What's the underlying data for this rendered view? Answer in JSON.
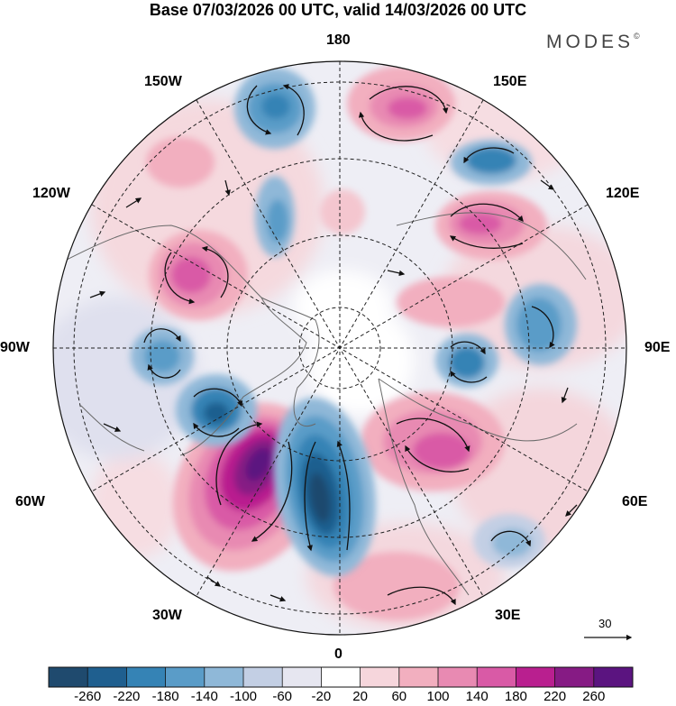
{
  "title": "Base 07/03/2026 00 UTC, valid 14/03/2026 00 UTC",
  "brand": "MODES",
  "brand_mark": "©",
  "longitude_labels": {
    "n180": "180",
    "w150": "150W",
    "e150": "150E",
    "w120": "120W",
    "e120": "120E",
    "w90": "90W",
    "e90": "90E",
    "w60": "60W",
    "e60": "60E",
    "w30": "30W",
    "e30": "30E",
    "s0": "0"
  },
  "vector_reference": "30",
  "colorbar": {
    "ticks": [
      "-260",
      "-220",
      "-180",
      "-140",
      "-100",
      "-60",
      "-20",
      "20",
      "60",
      "100",
      "140",
      "180",
      "220",
      "260"
    ],
    "colors": [
      "#1f4a6e",
      "#1f5f8f",
      "#3583b5",
      "#5a9cc8",
      "#8fb8d8",
      "#c3cfe4",
      "#e6e6f0",
      "#ffffff",
      "#f6d6dc",
      "#f2afbf",
      "#e88ab2",
      "#d95aa6",
      "#b91f8f",
      "#861b84",
      "#5b1480"
    ]
  },
  "colors": {
    "land": "#6a6a6a",
    "grid": "#222222"
  }
}
